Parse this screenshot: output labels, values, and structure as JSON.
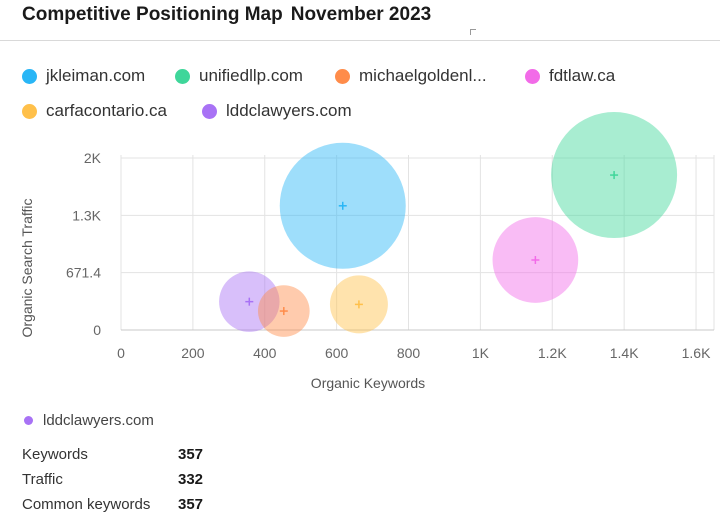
{
  "header": {
    "title": "Competitive Positioning Map",
    "period": "November 2023"
  },
  "legend": [
    {
      "label": "jkleiman.com",
      "color": "#29b6f6"
    },
    {
      "label": "unifiedllp.com",
      "color": "#3fd69a"
    },
    {
      "label": "michaelgoldenl...",
      "color": "#ff8c4a"
    },
    {
      "label": "fdtlaw.ca",
      "color": "#f26be8"
    },
    {
      "label": "carfacontario.ca",
      "color": "#ffc04a"
    },
    {
      "label": "lddclawyers.com",
      "color": "#a872f5"
    }
  ],
  "chart_data": {
    "type": "scatter",
    "title": "Competitive Positioning Map",
    "xlabel": "Organic Keywords",
    "ylabel": "Organic Search Traffic",
    "xlim": [
      0,
      1650
    ],
    "ylim": [
      0,
      2050
    ],
    "x_ticks": [
      {
        "value": 0,
        "label": "0"
      },
      {
        "value": 200,
        "label": "200"
      },
      {
        "value": 400,
        "label": "400"
      },
      {
        "value": 600,
        "label": "600"
      },
      {
        "value": 800,
        "label": "800"
      },
      {
        "value": 1000,
        "label": "1K"
      },
      {
        "value": 1200,
        "label": "1.2K"
      },
      {
        "value": 1400,
        "label": "1.4K"
      },
      {
        "value": 1600,
        "label": "1.6K"
      }
    ],
    "y_ticks": [
      {
        "value": 0,
        "label": "0"
      },
      {
        "value": 671.4,
        "label": "671.4"
      },
      {
        "value": 1342.8,
        "label": "1.3K"
      },
      {
        "value": 2014.2,
        "label": "2K"
      }
    ],
    "grid": true,
    "series": [
      {
        "name": "jkleiman.com",
        "color": "#29b6f6",
        "x": 617,
        "y": 1455,
        "size": 1.0
      },
      {
        "name": "unifiedllp.com",
        "color": "#3fd69a",
        "x": 1372,
        "y": 1815,
        "size": 1.0
      },
      {
        "name": "michaelgoldenl...",
        "color": "#ff8c4a",
        "x": 453,
        "y": 222,
        "size": 0.41
      },
      {
        "name": "fdtlaw.ca",
        "color": "#f26be8",
        "x": 1153,
        "y": 820,
        "size": 0.68
      },
      {
        "name": "carfacontario.ca",
        "color": "#ffc04a",
        "x": 662,
        "y": 300,
        "size": 0.46
      },
      {
        "name": "lddclawyers.com",
        "color": "#a872f5",
        "x": 357,
        "y": 332,
        "size": 0.48
      }
    ]
  },
  "details": {
    "site": "lddclawyers.com",
    "color": "#a872f5",
    "rows": [
      {
        "label": "Keywords",
        "value": "357"
      },
      {
        "label": "Traffic",
        "value": "332"
      },
      {
        "label": "Common keywords",
        "value": "357"
      }
    ]
  }
}
